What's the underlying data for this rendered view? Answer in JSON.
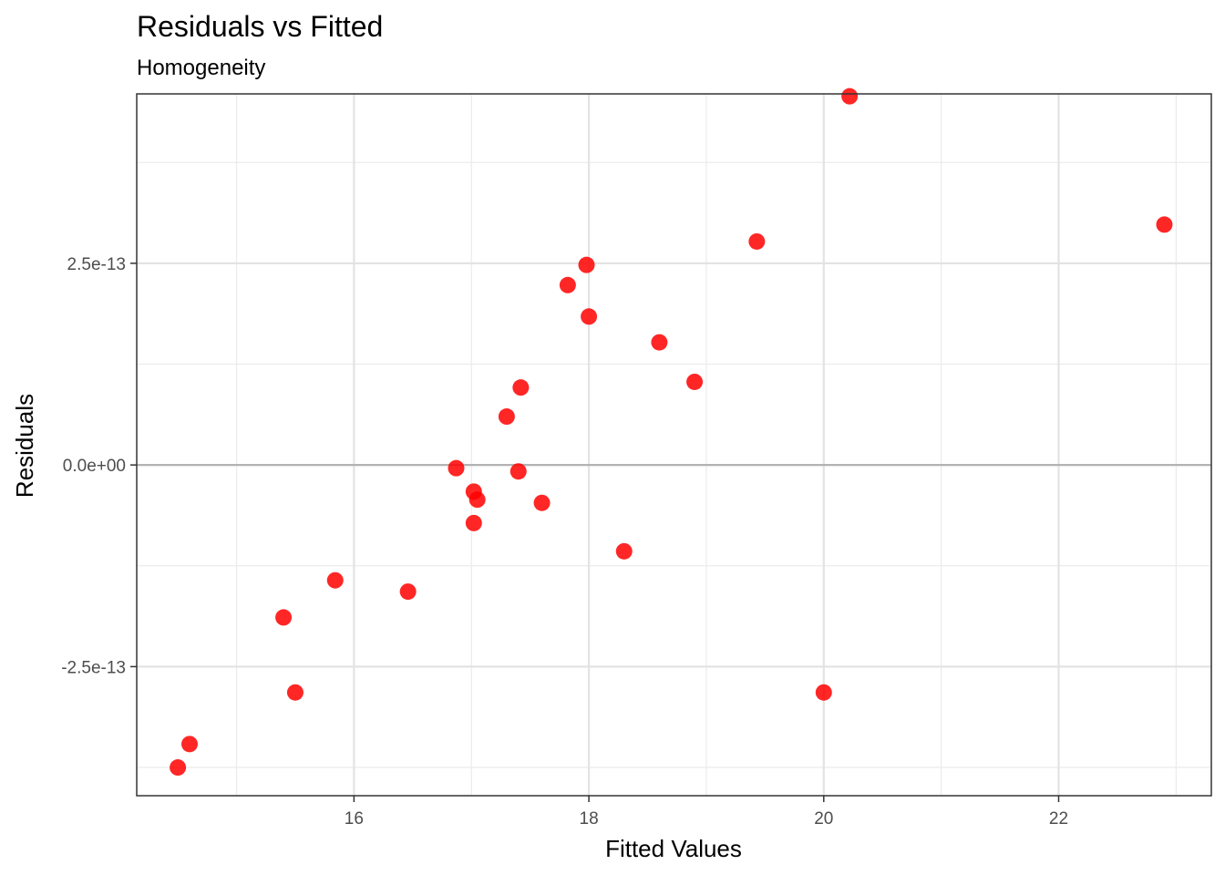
{
  "chart_data": {
    "type": "scatter",
    "title": "Residuals vs Fitted",
    "subtitle": "Homogeneity",
    "xlabel": "Fitted Values",
    "ylabel": "Residuals",
    "xlim": [
      14.15,
      23.3
    ],
    "ylim": [
      -4.1e-13,
      4.6e-13
    ],
    "x_ticks": [
      16,
      18,
      20,
      22
    ],
    "x_tick_labels": [
      "16",
      "18",
      "20",
      "22"
    ],
    "x_minor_ticks": [
      15,
      17,
      19,
      21,
      23
    ],
    "y_ticks": [
      -2.5e-13,
      0,
      2.5e-13
    ],
    "y_tick_labels": [
      "-2.5e-13",
      "0.0e+00",
      "2.5e-13"
    ],
    "y_minor_ticks": [
      -3.75e-13,
      -1.25e-13,
      1.25e-13,
      3.75e-13
    ],
    "reference_line_y": 0,
    "grid": true,
    "point_color": "#ff0000",
    "reference_line_color": "#b3b3b3",
    "points": [
      {
        "x": 14.5,
        "y": -3.75e-13
      },
      {
        "x": 14.6,
        "y": -3.46e-13
      },
      {
        "x": 15.4,
        "y": -1.89e-13
      },
      {
        "x": 15.5,
        "y": -2.82e-13
      },
      {
        "x": 15.84,
        "y": -1.43e-13
      },
      {
        "x": 16.46,
        "y": -1.57e-13
      },
      {
        "x": 16.87,
        "y": -4e-15
      },
      {
        "x": 17.02,
        "y": -3.3e-14
      },
      {
        "x": 17.05,
        "y": -4.3e-14
      },
      {
        "x": 17.02,
        "y": -7.2e-14
      },
      {
        "x": 17.3,
        "y": 6e-14
      },
      {
        "x": 17.42,
        "y": 9.6e-14
      },
      {
        "x": 17.4,
        "y": -8e-15
      },
      {
        "x": 17.6,
        "y": -4.7e-14
      },
      {
        "x": 17.82,
        "y": 2.23e-13
      },
      {
        "x": 17.98,
        "y": 2.48e-13
      },
      {
        "x": 18.0,
        "y": 1.84e-13
      },
      {
        "x": 18.3,
        "y": -1.07e-13
      },
      {
        "x": 18.6,
        "y": 1.52e-13
      },
      {
        "x": 18.9,
        "y": 1.03e-13
      },
      {
        "x": 19.43,
        "y": 2.77e-13
      },
      {
        "x": 20.0,
        "y": -2.82e-13
      },
      {
        "x": 20.22,
        "y": 4.57e-13
      },
      {
        "x": 22.9,
        "y": 2.98e-13
      }
    ]
  }
}
